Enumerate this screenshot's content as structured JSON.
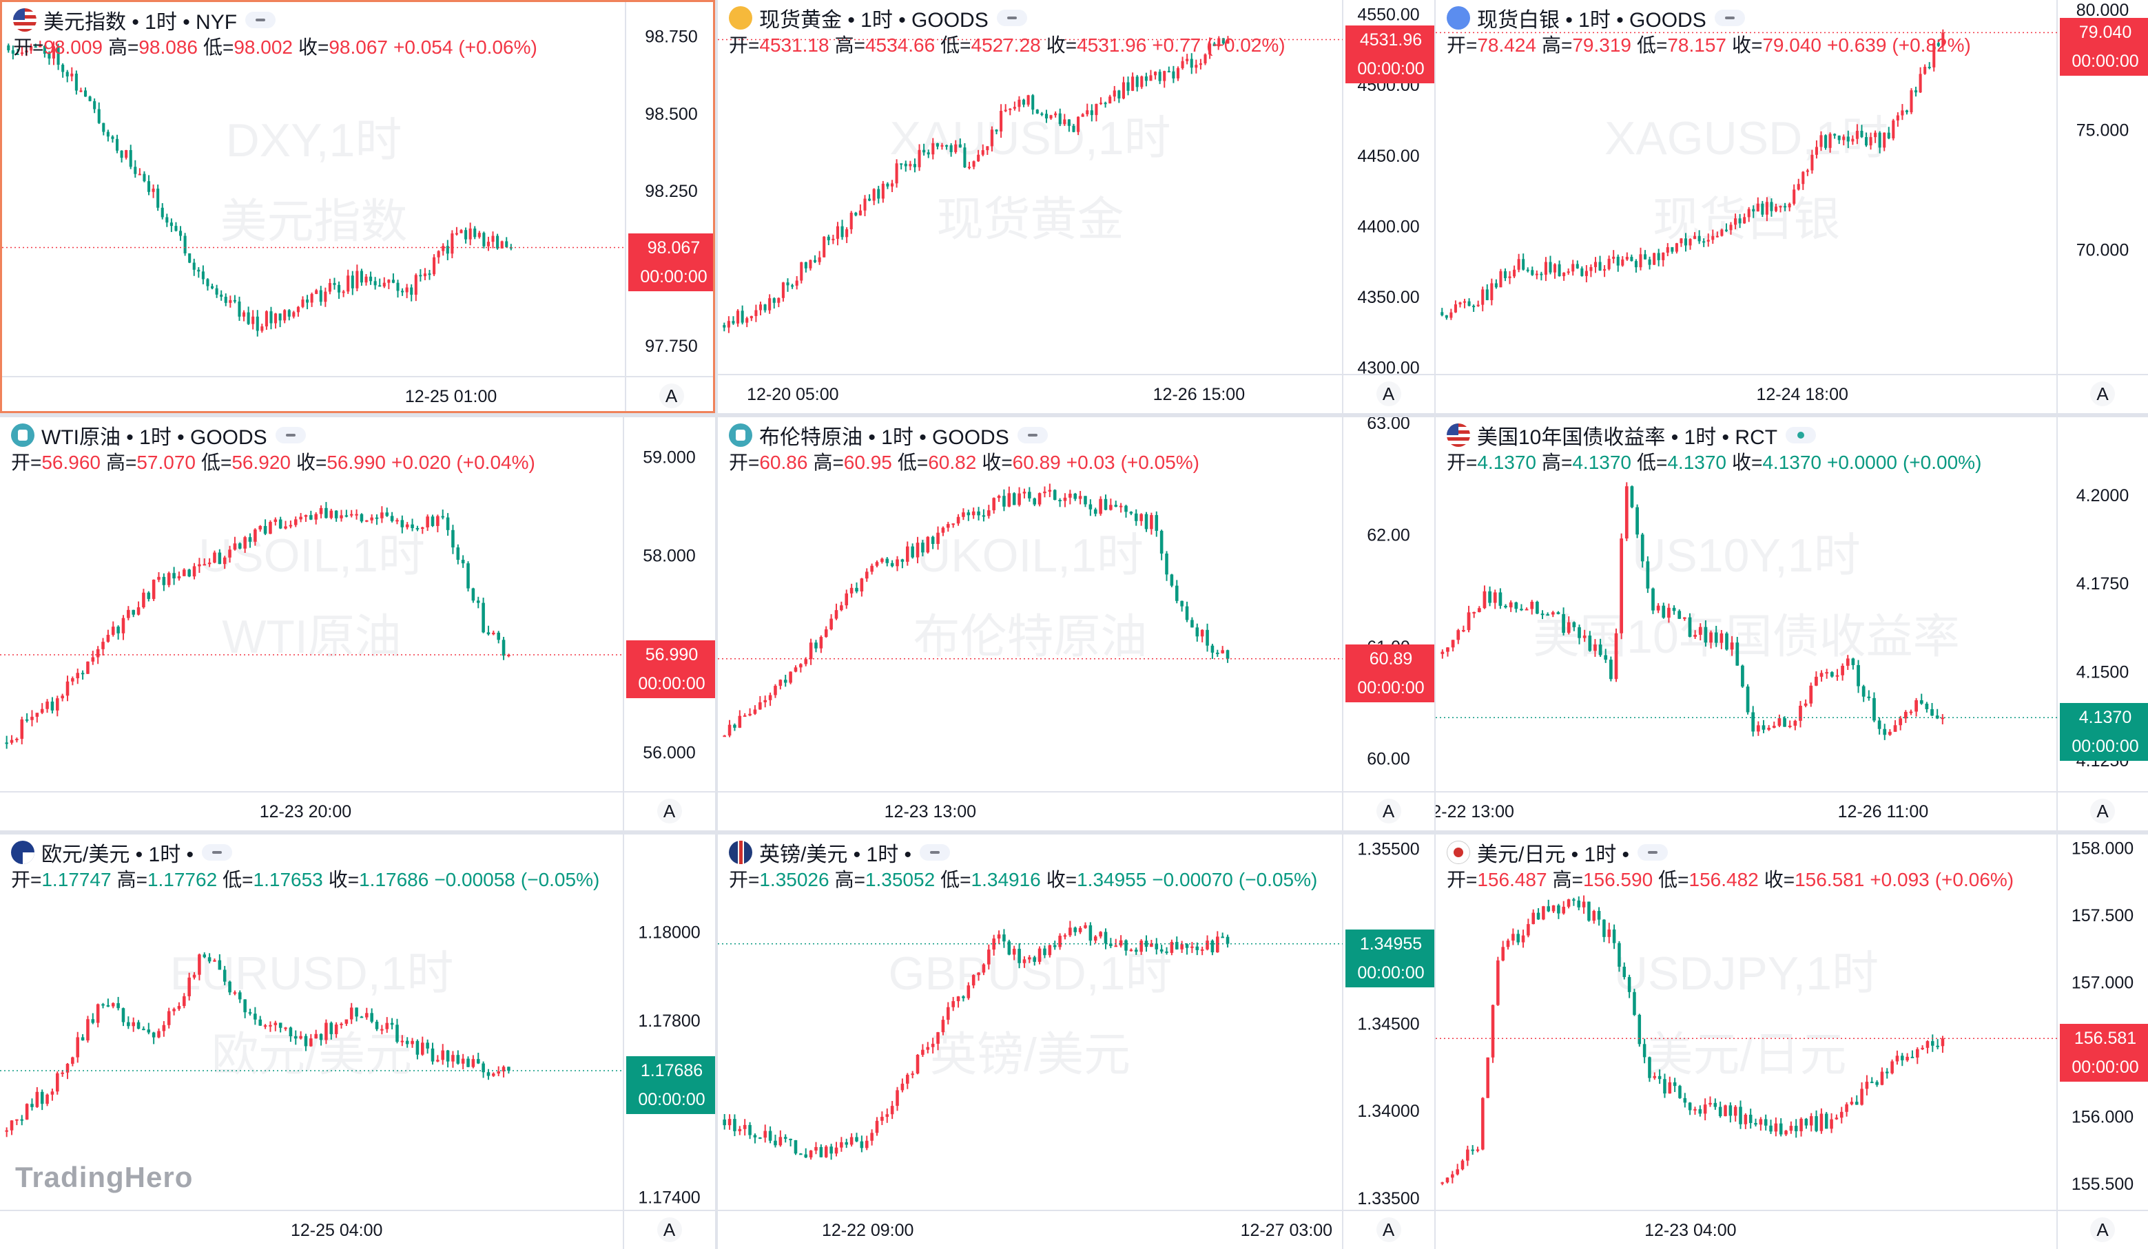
{
  "brand": "TradingHero",
  "colors": {
    "up": "#f23645",
    "down": "#089981",
    "text": "#131722",
    "axis_text": "#131722",
    "divider": "#e0e3eb",
    "active_border": "#f0825a"
  },
  "scale_button_label": "A",
  "chart_data": [
    {
      "type": "candlestick",
      "title": "美元指数 • 1时 • NYF",
      "icon": "us-flag-icon",
      "status": "market-closed",
      "watermark": [
        "DXY,1时",
        "美元指数"
      ],
      "ohlc": {
        "open_label": "开=",
        "open": "98.009",
        "high_label": "高=",
        "high": "98.086",
        "low_label": "低=",
        "low": "98.002",
        "close_label": "收=",
        "close": "98.067",
        "change": "+0.054",
        "change_pct": "(+0.06%)",
        "direction": "up"
      },
      "last_price": "98.067",
      "countdown": "00:00:00",
      "y_ticks": [
        "98.750",
        "98.500",
        "98.250",
        "97.750"
      ],
      "y_tick_values": [
        98.75,
        98.5,
        98.25,
        97.75
      ],
      "ylim": [
        97.65,
        98.86
      ],
      "last_value": 98.067,
      "x_ticks": [
        "12-25 01:00"
      ],
      "x_tick_positions": [
        0.72
      ],
      "profile": [
        [
          0,
          98.72
        ],
        [
          0.1,
          98.7
        ],
        [
          0.2,
          98.45
        ],
        [
          0.3,
          98.22
        ],
        [
          0.4,
          97.95
        ],
        [
          0.5,
          97.82
        ],
        [
          0.6,
          97.9
        ],
        [
          0.7,
          97.97
        ],
        [
          0.8,
          97.93
        ],
        [
          0.9,
          98.12
        ],
        [
          1.0,
          98.067
        ]
      ],
      "candle_count": 112,
      "seed": 11
    },
    {
      "type": "candlestick",
      "title": "现货黄金 • 1时 • GOODS",
      "icon": "gold-coin-icon",
      "status": "market-closed",
      "watermark": [
        "XAUUSD,1时",
        "现货黄金"
      ],
      "ohlc": {
        "open_label": "开=",
        "open": "4531.18",
        "high_label": "高=",
        "high": "4534.66",
        "low_label": "低=",
        "low": "4527.28",
        "close_label": "收=",
        "close": "4531.96",
        "change": "+0.77",
        "change_pct": "(+0.02%)",
        "direction": "up"
      },
      "last_price": "4531.96",
      "countdown": "00:00:00",
      "y_ticks": [
        "4550.00",
        "4500.00",
        "4450.00",
        "4400.00",
        "4350.00",
        "4300.00"
      ],
      "y_tick_values": [
        4550,
        4500,
        4450,
        4400,
        4350,
        4300
      ],
      "ylim": [
        4295,
        4560
      ],
      "last_value": 4531.96,
      "x_ticks": [
        "12-20 05:00",
        "12-26 15:00"
      ],
      "x_tick_positions": [
        0.12,
        0.77
      ],
      "profile": [
        [
          0,
          4330
        ],
        [
          0.1,
          4345
        ],
        [
          0.2,
          4385
        ],
        [
          0.25,
          4400
        ],
        [
          0.35,
          4440
        ],
        [
          0.45,
          4460
        ],
        [
          0.5,
          4440
        ],
        [
          0.55,
          4475
        ],
        [
          0.6,
          4490
        ],
        [
          0.7,
          4470
        ],
        [
          0.8,
          4500
        ],
        [
          0.9,
          4510
        ],
        [
          1.0,
          4531.96
        ]
      ],
      "candle_count": 112,
      "seed": 23
    },
    {
      "type": "candlestick",
      "title": "现货白银 • 1时 • GOODS",
      "icon": "silver-coin-icon",
      "status": "market-closed",
      "watermark": [
        "XAGUSD,1时",
        "现货白银"
      ],
      "ohlc": {
        "open_label": "开=",
        "open": "78.424",
        "high_label": "高=",
        "high": "79.319",
        "low_label": "低=",
        "low": "78.157",
        "close_label": "收=",
        "close": "79.040",
        "change": "+0.639",
        "change_pct": "(+0.82%)",
        "direction": "up"
      },
      "last_price": "79.040",
      "countdown": "00:00:00",
      "y_ticks": [
        "80.000",
        "75.000",
        "70.000",
        "65.000"
      ],
      "y_tick_values": [
        80,
        75,
        70,
        65
      ],
      "ylim": [
        64.8,
        80.4
      ],
      "last_value": 79.04,
      "x_ticks": [
        "12-24 18:00"
      ],
      "x_tick_positions": [
        0.59
      ],
      "profile": [
        [
          0,
          67.4
        ],
        [
          0.08,
          67.8
        ],
        [
          0.15,
          69.3
        ],
        [
          0.25,
          69.1
        ],
        [
          0.35,
          69.4
        ],
        [
          0.45,
          69.8
        ],
        [
          0.55,
          70.8
        ],
        [
          0.62,
          71.5
        ],
        [
          0.7,
          72.0
        ],
        [
          0.75,
          74.5
        ],
        [
          0.82,
          74.8
        ],
        [
          0.88,
          74.5
        ],
        [
          0.93,
          76.0
        ],
        [
          1.0,
          79.04
        ]
      ],
      "candle_count": 112,
      "seed": 37
    },
    {
      "type": "candlestick",
      "title": "WTI原油 • 1时 • GOODS",
      "icon": "oil-barrel-icon",
      "status": "market-closed",
      "watermark": [
        "USOIL,1时",
        "WTI原油"
      ],
      "ohlc": {
        "open_label": "开=",
        "open": "56.960",
        "high_label": "高=",
        "high": "57.070",
        "low_label": "低=",
        "low": "56.920",
        "close_label": "收=",
        "close": "56.990",
        "change": "+0.020",
        "change_pct": "(+0.04%)",
        "direction": "up"
      },
      "last_price": "56.990",
      "countdown": "00:00:00",
      "y_ticks": [
        "59.000",
        "58.000",
        "57.000",
        "56.000"
      ],
      "y_tick_values": [
        59,
        58,
        57,
        56
      ],
      "ylim": [
        55.6,
        59.4
      ],
      "last_value": 56.99,
      "x_ticks": [
        "12-23 20:00"
      ],
      "x_tick_positions": [
        0.49
      ],
      "profile": [
        [
          0,
          56.1
        ],
        [
          0.1,
          56.5
        ],
        [
          0.2,
          57.1
        ],
        [
          0.3,
          57.7
        ],
        [
          0.4,
          57.9
        ],
        [
          0.5,
          58.2
        ],
        [
          0.6,
          58.4
        ],
        [
          0.7,
          58.4
        ],
        [
          0.8,
          58.35
        ],
        [
          0.88,
          58.3
        ],
        [
          0.95,
          57.3
        ],
        [
          1.0,
          56.99
        ]
      ],
      "candle_count": 100,
      "seed": 41
    },
    {
      "type": "candlestick",
      "title": "布伦特原油 • 1时 • GOODS",
      "icon": "oil-barrel-icon",
      "status": "market-closed",
      "watermark": [
        "UKOIL,1时",
        "布伦特原油"
      ],
      "ohlc": {
        "open_label": "开=",
        "open": "60.86",
        "high_label": "高=",
        "high": "60.95",
        "low_label": "低=",
        "low": "60.82",
        "close_label": "收=",
        "close": "60.89",
        "change": "+0.03",
        "change_pct": "(+0.05%)",
        "direction": "up"
      },
      "last_price": "60.89",
      "countdown": "00:00:00",
      "y_ticks": [
        "63.00",
        "62.00",
        "61.00",
        "60.00"
      ],
      "y_tick_values": [
        63,
        62,
        61,
        60
      ],
      "ylim": [
        59.7,
        63.05
      ],
      "last_value": 60.89,
      "x_ticks": [
        "12-23 13:00"
      ],
      "x_tick_positions": [
        0.34
      ],
      "profile": [
        [
          0,
          60.2
        ],
        [
          0.1,
          60.6
        ],
        [
          0.2,
          61.1
        ],
        [
          0.3,
          61.7
        ],
        [
          0.4,
          61.9
        ],
        [
          0.5,
          62.2
        ],
        [
          0.6,
          62.35
        ],
        [
          0.7,
          62.3
        ],
        [
          0.8,
          62.2
        ],
        [
          0.85,
          62.1
        ],
        [
          0.92,
          61.2
        ],
        [
          1.0,
          60.89
        ]
      ],
      "candle_count": 100,
      "seed": 53
    },
    {
      "type": "candlestick",
      "title": "美国10年国债收益率 • 1时 • RCT",
      "icon": "us-flag-icon",
      "status": "market-open",
      "watermark": [
        "US10Y,1时",
        "美国10年国债收益率"
      ],
      "ohlc": {
        "open_label": "开=",
        "open": "4.1370",
        "high_label": "高=",
        "high": "4.1370",
        "low_label": "低=",
        "low": "4.1370",
        "close_label": "收=",
        "close": "4.1370",
        "change": "+0.0000",
        "change_pct": "(+0.00%)",
        "direction": "down"
      },
      "last_price": "4.1370",
      "countdown": "00:00:00",
      "y_ticks": [
        "4.2000",
        "4.1750",
        "4.1500",
        "4.1250"
      ],
      "y_tick_values": [
        4.2,
        4.175,
        4.15,
        4.125
      ],
      "ylim": [
        4.116,
        4.222
      ],
      "last_value": 4.137,
      "x_ticks": [
        "2-22 13:00",
        "12-26 11:00"
      ],
      "x_tick_positions": [
        0.06,
        0.72
      ],
      "profile": [
        [
          0,
          4.155
        ],
        [
          0.1,
          4.172
        ],
        [
          0.2,
          4.168
        ],
        [
          0.3,
          4.158
        ],
        [
          0.35,
          4.148
        ],
        [
          0.37,
          4.205
        ],
        [
          0.42,
          4.17
        ],
        [
          0.5,
          4.162
        ],
        [
          0.58,
          4.158
        ],
        [
          0.62,
          4.135
        ],
        [
          0.7,
          4.135
        ],
        [
          0.75,
          4.148
        ],
        [
          0.82,
          4.152
        ],
        [
          0.88,
          4.132
        ],
        [
          0.95,
          4.14
        ],
        [
          1.0,
          4.137
        ]
      ],
      "candle_count": 96,
      "seed": 67
    },
    {
      "type": "candlestick",
      "title": "欧元/美元 • 1时 •",
      "icon": "eu-flag-icon",
      "status": "market-closed",
      "watermark": [
        "EURUSD,1时",
        "欧元/美元"
      ],
      "ohlc": {
        "open_label": "开=",
        "open": "1.17747",
        "high_label": "高=",
        "high": "1.17762",
        "low_label": "低=",
        "low": "1.17653",
        "close_label": "收=",
        "close": "1.17686",
        "change": "−0.00058",
        "change_pct": "(−0.05%)",
        "direction": "down"
      },
      "last_price": "1.17686",
      "countdown": "00:00:00",
      "y_ticks": [
        "1.18000",
        "1.17800",
        "1.17400"
      ],
      "y_tick_values": [
        1.18,
        1.178,
        1.174
      ],
      "ylim": [
        1.1737,
        1.1822
      ],
      "last_value": 1.17686,
      "x_ticks": [
        "12-25 04:00"
      ],
      "x_tick_positions": [
        0.54
      ],
      "profile": [
        [
          0,
          1.1755
        ],
        [
          0.1,
          1.1765
        ],
        [
          0.2,
          1.1785
        ],
        [
          0.3,
          1.1775
        ],
        [
          0.4,
          1.1795
        ],
        [
          0.5,
          1.178
        ],
        [
          0.6,
          1.1775
        ],
        [
          0.7,
          1.1782
        ],
        [
          0.8,
          1.1775
        ],
        [
          0.9,
          1.177
        ],
        [
          1.0,
          1.17686
        ]
      ],
      "candle_count": 100,
      "seed": 79
    },
    {
      "type": "candlestick",
      "title": "英镑/美元 • 1时 •",
      "icon": "gb-flag-icon",
      "status": "market-closed",
      "watermark": [
        "GBPUSD,1时",
        "英镑/美元"
      ],
      "ohlc": {
        "open_label": "开=",
        "open": "1.35026",
        "high_label": "高=",
        "high": "1.35052",
        "low_label": "低=",
        "low": "1.34916",
        "close_label": "收=",
        "close": "1.34955",
        "change": "−0.00070",
        "change_pct": "(−0.05%)",
        "direction": "down"
      },
      "last_price": "1.34955",
      "countdown": "00:00:00",
      "y_ticks": [
        "1.35500",
        "1.35000",
        "1.34500",
        "1.34000",
        "1.33500"
      ],
      "y_tick_values": [
        1.355,
        1.35,
        1.345,
        1.34,
        1.335
      ],
      "ylim": [
        1.3343,
        1.3558
      ],
      "last_value": 1.34955,
      "x_ticks": [
        "12-22 09:00",
        "12-27 03:00"
      ],
      "x_tick_positions": [
        0.24,
        0.91
      ],
      "profile": [
        [
          0,
          1.3395
        ],
        [
          0.1,
          1.3385
        ],
        [
          0.2,
          1.3375
        ],
        [
          0.3,
          1.3385
        ],
        [
          0.4,
          1.3435
        ],
        [
          0.5,
          1.3475
        ],
        [
          0.55,
          1.35
        ],
        [
          0.6,
          1.3485
        ],
        [
          0.7,
          1.3505
        ],
        [
          0.8,
          1.3495
        ],
        [
          0.9,
          1.3495
        ],
        [
          1.0,
          1.34955
        ]
      ],
      "candle_count": 100,
      "seed": 83
    },
    {
      "type": "candlestick",
      "title": "美元/日元 • 1时 •",
      "icon": "jp-flag-icon",
      "status": "market-closed",
      "watermark": [
        "USDJPY,1时",
        "美元/日元"
      ],
      "ohlc": {
        "open_label": "开=",
        "open": "156.487",
        "high_label": "高=",
        "high": "156.590",
        "low_label": "低=",
        "low": "156.482",
        "close_label": "收=",
        "close": "156.581",
        "change": "+0.093",
        "change_pct": "(+0.06%)",
        "direction": "up"
      },
      "last_price": "156.581",
      "countdown": "00:00:00",
      "y_ticks": [
        "158.000",
        "157.500",
        "157.000",
        "156.000",
        "155.500"
      ],
      "y_tick_values": [
        158,
        157.5,
        157,
        156,
        155.5
      ],
      "ylim": [
        155.3,
        158.1
      ],
      "last_value": 156.581,
      "x_ticks": [
        "12-23 04:00"
      ],
      "x_tick_positions": [
        0.41
      ],
      "profile": [
        [
          0,
          155.5
        ],
        [
          0.08,
          155.8
        ],
        [
          0.12,
          157.2
        ],
        [
          0.2,
          157.5
        ],
        [
          0.28,
          157.6
        ],
        [
          0.35,
          157.3
        ],
        [
          0.42,
          156.3
        ],
        [
          0.5,
          156.1
        ],
        [
          0.6,
          156.0
        ],
        [
          0.7,
          155.9
        ],
        [
          0.8,
          156.0
        ],
        [
          0.9,
          156.4
        ],
        [
          1.0,
          156.581
        ]
      ],
      "candle_count": 100,
      "seed": 97
    }
  ]
}
